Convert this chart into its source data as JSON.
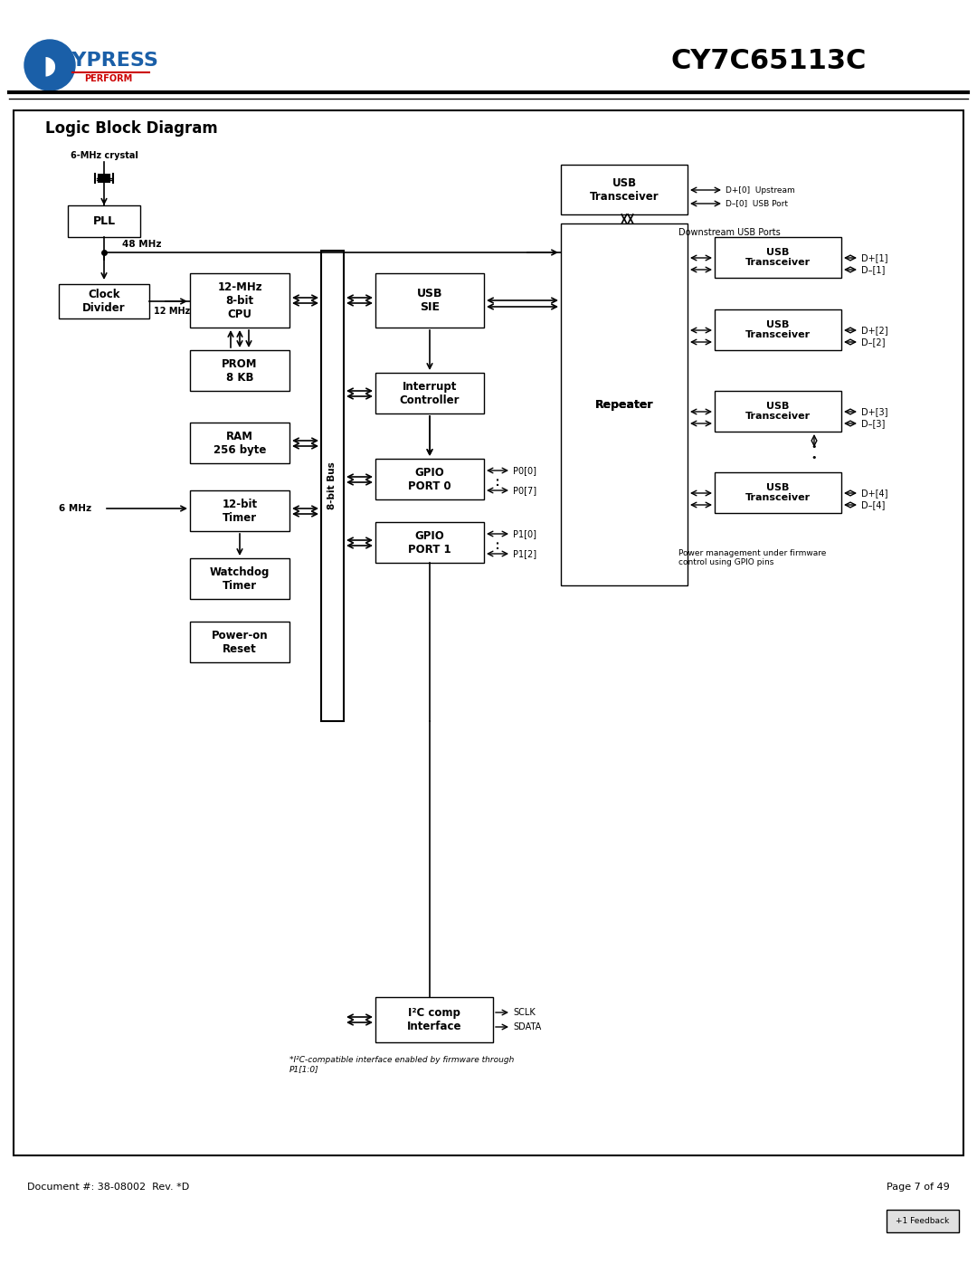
{
  "title": "CY7C65113C",
  "diagram_title": "Logic Block Diagram",
  "bg_color": "#ffffff",
  "box_color": "#ffffff",
  "box_edge": "#000000",
  "text_color": "#000000",
  "fig_width": 10.8,
  "fig_height": 13.97,
  "footer_left": "Document #: 38-08002  Rev. *D",
  "footer_right": "Page 7 of 49",
  "feedback": "+1 Feedback"
}
